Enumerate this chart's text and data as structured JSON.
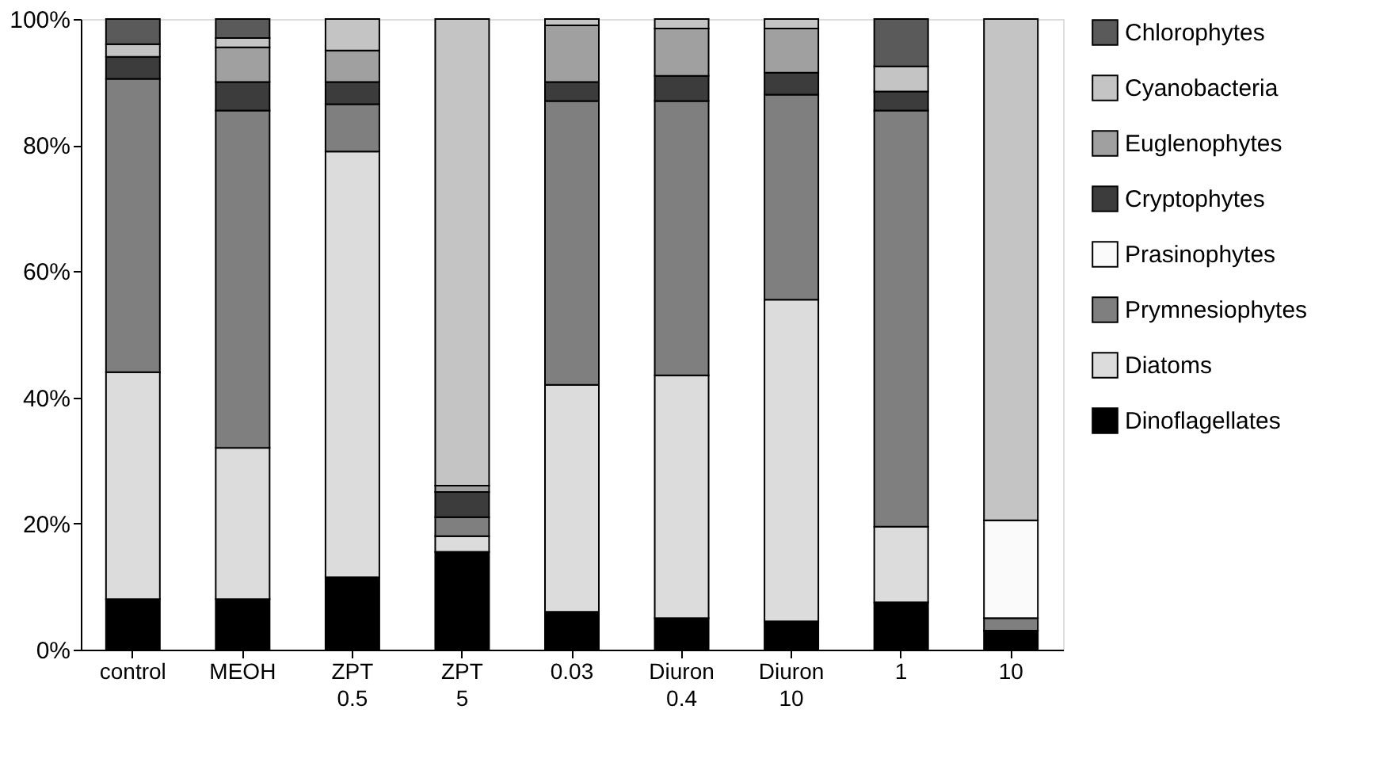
{
  "chart_data": {
    "type": "bar",
    "stacked": true,
    "categories": [
      "control",
      "MEOH",
      "ZPT 0.5",
      "ZPT 5",
      "0.03",
      "Diuron 0.4",
      "Diuron 10",
      "1",
      "10"
    ],
    "series": [
      {
        "name": "Dinoflagellates",
        "color": "#000000",
        "values": [
          8,
          8,
          11.5,
          15.5,
          6,
          5,
          4.5,
          7.5,
          3
        ]
      },
      {
        "name": "Diatoms",
        "color": "#dcdcdc",
        "values": [
          36,
          24,
          67.5,
          2.5,
          36,
          38.5,
          51,
          12,
          0
        ]
      },
      {
        "name": "Prymnesiophytes",
        "color": "#7f7f7f",
        "values": [
          46.5,
          53.5,
          7.5,
          3,
          45,
          43.5,
          32.5,
          66,
          2
        ]
      },
      {
        "name": "Prasinophytes",
        "color": "#fafafa",
        "values": [
          0,
          0,
          0,
          0,
          0,
          0,
          0,
          0,
          15.5
        ]
      },
      {
        "name": "Cryptophytes",
        "color": "#3c3c3c",
        "values": [
          3.5,
          4.5,
          3.5,
          4,
          3,
          4,
          3.5,
          3,
          0
        ]
      },
      {
        "name": "Euglenophytes",
        "color": "#a0a0a0",
        "values": [
          0,
          5.5,
          5,
          1,
          9,
          7.5,
          7,
          0,
          0
        ]
      },
      {
        "name": "Cyanobacteria",
        "color": "#c4c4c4",
        "values": [
          2,
          1.5,
          5,
          74,
          1,
          1.5,
          1.5,
          4,
          79.5
        ]
      },
      {
        "name": "Chlorophytes",
        "color": "#5a5a5a",
        "values": [
          4,
          3,
          0,
          0,
          0,
          0,
          0,
          7.5,
          0
        ]
      }
    ],
    "ylim": [
      0,
      100
    ],
    "yticks": [
      {
        "value": 0,
        "label": "0%"
      },
      {
        "value": 20,
        "label": "20%"
      },
      {
        "value": 40,
        "label": "40%"
      },
      {
        "value": 60,
        "label": "60%"
      },
      {
        "value": 80,
        "label": "80%"
      },
      {
        "value": 100,
        "label": "100%"
      }
    ],
    "grid": false,
    "legend": "right"
  }
}
